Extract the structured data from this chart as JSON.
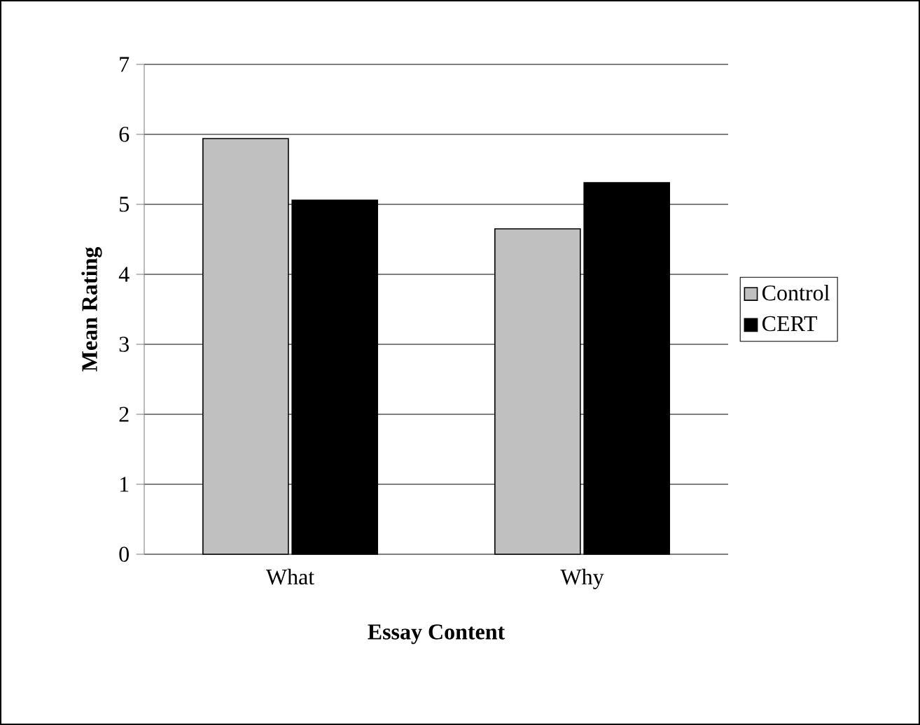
{
  "chart_data": {
    "type": "bar",
    "xlabel": "Essay Content",
    "ylabel": "Mean Rating",
    "categories": [
      "What",
      "Why"
    ],
    "series": [
      {
        "name": "Control",
        "color": "#c0c0c0",
        "values": [
          5.94,
          4.65
        ]
      },
      {
        "name": "CERT",
        "color": "#000000",
        "values": [
          5.06,
          5.31
        ]
      }
    ],
    "ylim": [
      0,
      7
    ],
    "yticks": [
      0,
      1,
      2,
      3,
      4,
      5,
      6,
      7
    ],
    "grid": "y",
    "legend": "right"
  }
}
